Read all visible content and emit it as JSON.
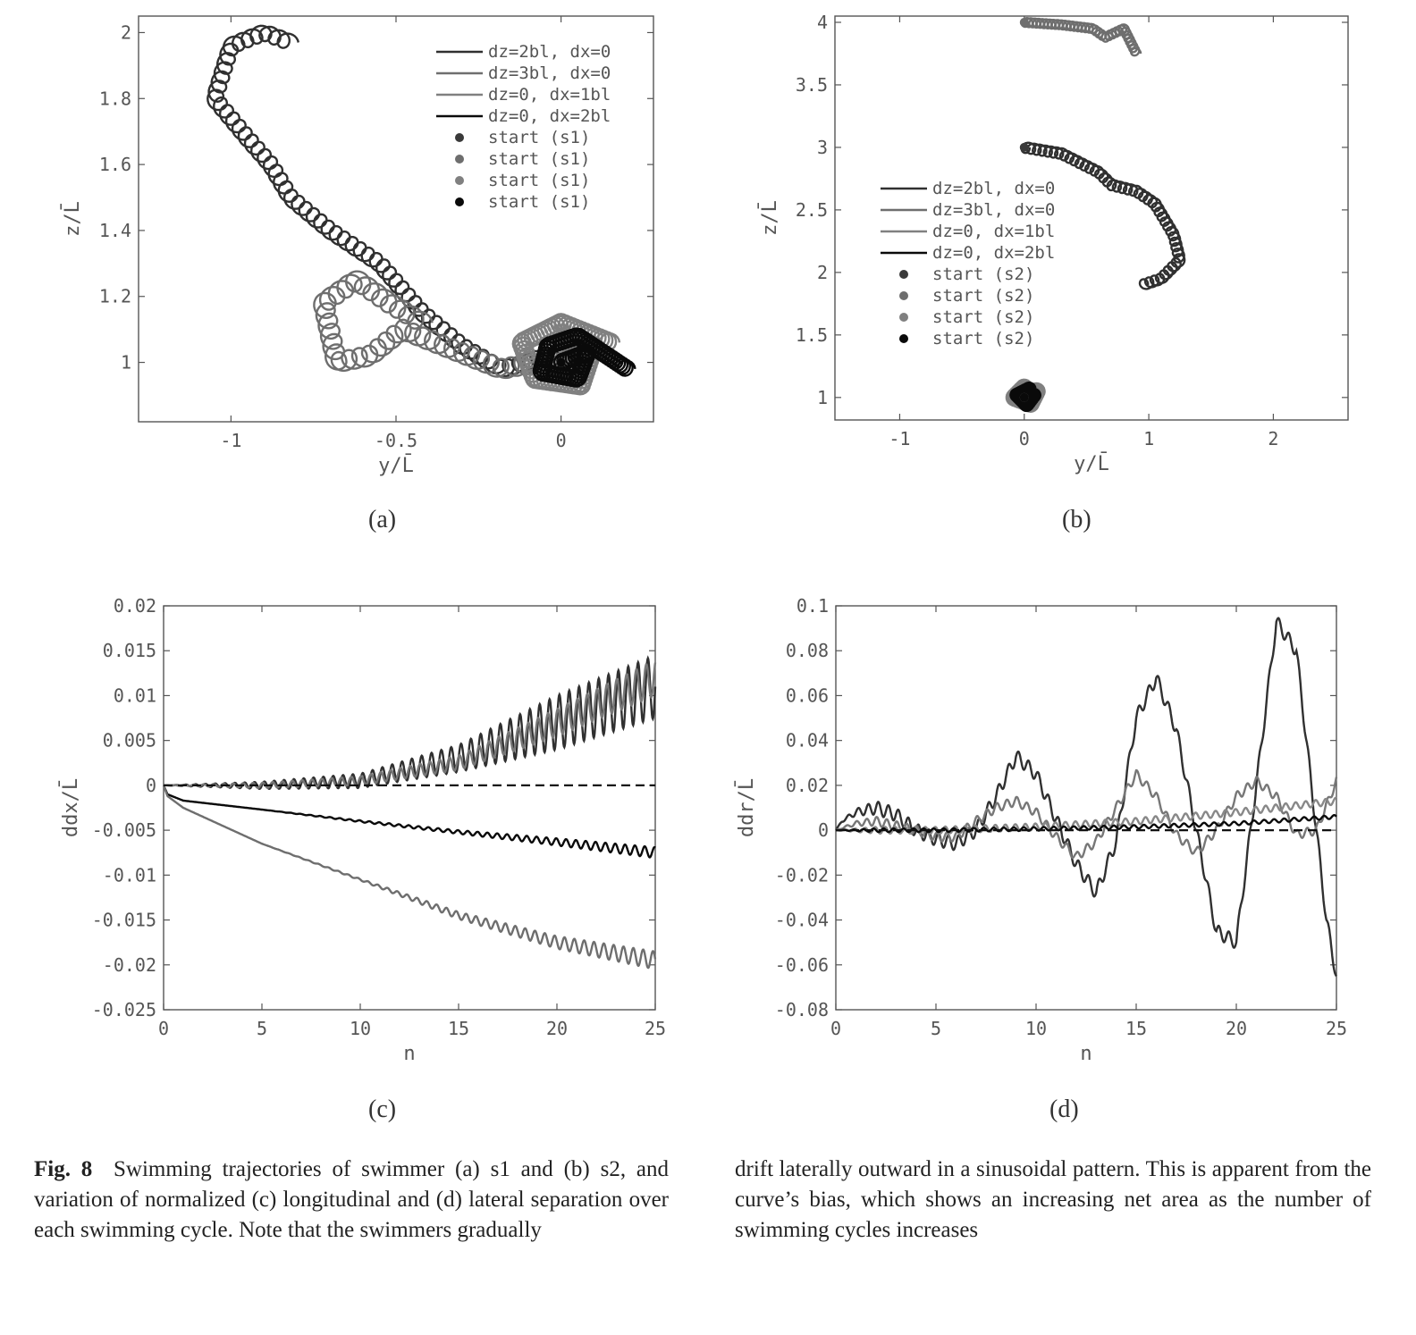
{
  "chart_data": [
    {
      "id": "a",
      "type": "line",
      "xlabel": "y/L̄",
      "ylabel": "z/L̄",
      "xlim": [
        -1.28,
        0.28
      ],
      "ylim": [
        0.82,
        2.05
      ],
      "xticks": [
        "-1",
        "-0.5",
        "0"
      ],
      "xtick_values": [
        -1,
        -0.5,
        0
      ],
      "yticks": [
        "1",
        "1.2",
        "1.4",
        "1.6",
        "1.8",
        "2"
      ],
      "ytick_values": [
        1,
        1.2,
        1.4,
        1.6,
        1.8,
        2
      ],
      "legend_position": "top-right",
      "series": [
        {
          "name": "dz=2bl, dx=0",
          "color": "#303030",
          "path": [
            [
              0,
              1
            ],
            [
              -0.05,
              1.02
            ],
            [
              -0.1,
              1.0
            ],
            [
              -0.18,
              0.98
            ],
            [
              -0.3,
              1.05
            ],
            [
              -0.42,
              1.15
            ],
            [
              -0.55,
              1.3
            ],
            [
              -0.7,
              1.4
            ],
            [
              -0.82,
              1.5
            ],
            [
              -0.88,
              1.6
            ],
            [
              -0.95,
              1.68
            ],
            [
              -1.05,
              1.8
            ],
            [
              -1.0,
              1.96
            ],
            [
              -0.9,
              2.0
            ],
            [
              -0.82,
              1.97
            ]
          ]
        },
        {
          "name": "dz=3bl, dx=0",
          "color": "#6e6e6e",
          "path": [
            [
              0,
              1
            ],
            [
              -0.08,
              1.0
            ],
            [
              -0.18,
              0.98
            ],
            [
              -0.28,
              1.02
            ],
            [
              -0.38,
              1.06
            ],
            [
              -0.48,
              1.1
            ],
            [
              -0.58,
              1.02
            ],
            [
              -0.68,
              1.0
            ],
            [
              -0.72,
              1.18
            ],
            [
              -0.62,
              1.25
            ],
            [
              -0.52,
              1.18
            ],
            [
              -0.42,
              1.12
            ]
          ]
        },
        {
          "name": "dz=0, dx=1bl",
          "color": "#808080",
          "path": [
            [
              0,
              1
            ],
            [
              0.1,
              1.05
            ],
            [
              0.06,
              0.93
            ],
            [
              -0.08,
              0.95
            ],
            [
              -0.12,
              1.06
            ],
            [
              0.0,
              1.12
            ],
            [
              0.15,
              1.06
            ]
          ]
        },
        {
          "name": "dz=0, dx=2bl",
          "color": "#0a0a0a",
          "path": [
            [
              0,
              1
            ],
            [
              0.08,
              1.03
            ],
            [
              0.05,
              0.95
            ],
            [
              -0.06,
              0.97
            ],
            [
              -0.04,
              1.05
            ],
            [
              0.05,
              1.08
            ],
            [
              0.2,
              0.98
            ]
          ]
        }
      ],
      "start_points": [
        {
          "name": "start (s1)",
          "x": 0,
          "y": 1,
          "color": "#3a3a3a"
        },
        {
          "name": "start (s1)",
          "x": 0,
          "y": 1,
          "color": "#6e6e6e"
        },
        {
          "name": "start (s1)",
          "x": 0,
          "y": 1,
          "color": "#808080"
        },
        {
          "name": "start (s1)",
          "x": 0,
          "y": 1,
          "color": "#0a0a0a"
        }
      ],
      "sublabel": "(a)"
    },
    {
      "id": "b",
      "type": "line",
      "xlabel": "y/L̄",
      "ylabel": "z/L̄",
      "xlim": [
        -1.52,
        2.6
      ],
      "ylim": [
        0.82,
        4.05
      ],
      "xticks": [
        "-1",
        "0",
        "1",
        "2"
      ],
      "xtick_values": [
        -1,
        0,
        1,
        2
      ],
      "yticks": [
        "1",
        "1.5",
        "2",
        "2.5",
        "3",
        "3.5",
        "4"
      ],
      "ytick_values": [
        1,
        1.5,
        2,
        2.5,
        3,
        3.5,
        4
      ],
      "legend_position": "middle-left",
      "series": [
        {
          "name": "dz=2bl, dx=0",
          "color": "#303030",
          "path": [
            [
              0,
              3
            ],
            [
              0.3,
              2.95
            ],
            [
              0.6,
              2.8
            ],
            [
              0.7,
              2.7
            ],
            [
              0.9,
              2.65
            ],
            [
              1.05,
              2.55
            ],
            [
              1.2,
              2.3
            ],
            [
              1.25,
              2.1
            ],
            [
              1.1,
              1.95
            ],
            [
              0.95,
              1.9
            ]
          ]
        },
        {
          "name": "dz=3bl, dx=0",
          "color": "#6e6e6e",
          "path": [
            [
              0,
              4
            ],
            [
              0.3,
              3.98
            ],
            [
              0.55,
              3.95
            ],
            [
              0.65,
              3.88
            ],
            [
              0.8,
              3.95
            ],
            [
              0.9,
              3.75
            ]
          ]
        },
        {
          "name": "dz=0, dx=1bl",
          "color": "#808080",
          "path": [
            [
              0,
              1
            ],
            [
              0.1,
              1.05
            ],
            [
              0.05,
              0.95
            ],
            [
              -0.08,
              1.0
            ],
            [
              0.0,
              1.08
            ]
          ]
        },
        {
          "name": "dz=0, dx=2bl",
          "color": "#0a0a0a",
          "path": [
            [
              0,
              1
            ],
            [
              0.08,
              1.02
            ],
            [
              0.02,
              0.94
            ],
            [
              -0.06,
              1.02
            ],
            [
              0.04,
              1.07
            ]
          ]
        }
      ],
      "start_points": [
        {
          "name": "start (s2)",
          "x": 0,
          "y": 3,
          "color": "#3a3a3a"
        },
        {
          "name": "start (s2)",
          "x": 0,
          "y": 4,
          "color": "#6e6e6e"
        },
        {
          "name": "start (s2)",
          "x": 0,
          "y": 1,
          "color": "#808080"
        },
        {
          "name": "start (s2)",
          "x": 0,
          "y": 1,
          "color": "#0a0a0a"
        }
      ],
      "sublabel": "(b)"
    },
    {
      "id": "c",
      "type": "line",
      "xlabel": "n",
      "ylabel": "ddx/L̄",
      "xlim": [
        0,
        25
      ],
      "ylim": [
        -0.025,
        0.02
      ],
      "xticks": [
        "0",
        "5",
        "10",
        "15",
        "20",
        "25"
      ],
      "xtick_values": [
        0,
        5,
        10,
        15,
        20,
        25
      ],
      "yticks": [
        "-0.025",
        "-0.02",
        "-0.015",
        "-0.01",
        "-0.005",
        "0",
        "0.005",
        "0.01",
        "0.015",
        "0.02"
      ],
      "ytick_values": [
        -0.025,
        -0.02,
        -0.015,
        -0.01,
        -0.005,
        0,
        0.005,
        0.01,
        0.015,
        0.02
      ],
      "reference_line": 0,
      "series": [
        {
          "color": "#303030",
          "x": [
            0,
            5,
            10,
            15,
            20,
            25
          ],
          "y": [
            0,
            0,
            0.0005,
            0.003,
            0.007,
            0.011
          ],
          "osc_amp": [
            0,
            0.0004,
            0.0008,
            0.0015,
            0.003,
            0.0035
          ]
        },
        {
          "color": "#777777",
          "x": [
            0,
            5,
            10,
            15,
            20,
            25
          ],
          "y": [
            0,
            0,
            0.0005,
            0.0025,
            0.007,
            0.012
          ],
          "osc_amp": [
            0,
            0.0003,
            0.0005,
            0.0008,
            0.0015,
            0.002
          ]
        },
        {
          "color": "#0a0a0a",
          "x": [
            0,
            0.2,
            1,
            5,
            10,
            15,
            20,
            25
          ],
          "y": [
            0,
            -0.001,
            -0.0017,
            -0.0027,
            -0.004,
            -0.0052,
            -0.0063,
            -0.0075
          ],
          "osc_amp": [
            0,
            0,
            0,
            0,
            0.0001,
            0.0002,
            0.0004,
            0.0006
          ]
        },
        {
          "color": "#6e6e6e",
          "x": [
            0,
            0.2,
            1,
            5,
            10,
            15,
            20,
            25
          ],
          "y": [
            0,
            -0.0012,
            -0.0025,
            -0.0065,
            -0.0105,
            -0.0145,
            -0.0175,
            -0.0195
          ],
          "osc_amp": [
            0,
            0,
            0,
            0,
            0.0001,
            0.0004,
            0.0007,
            0.001
          ]
        }
      ],
      "sublabel": "(c)"
    },
    {
      "id": "d",
      "type": "line",
      "xlabel": "n",
      "ylabel": "ddr/L̄",
      "xlim": [
        0,
        25
      ],
      "ylim": [
        -0.08,
        0.1
      ],
      "xticks": [
        "0",
        "5",
        "10",
        "15",
        "20",
        "25"
      ],
      "xtick_values": [
        0,
        5,
        10,
        15,
        20,
        25
      ],
      "yticks": [
        "-0.08",
        "-0.06",
        "-0.04",
        "-0.02",
        "0",
        "0.02",
        "0.04",
        "0.06",
        "0.08",
        "0.1"
      ],
      "ytick_values": [
        -0.08,
        -0.06,
        -0.04,
        -0.02,
        0,
        0.02,
        0.04,
        0.06,
        0.08,
        0.1
      ],
      "reference_line": 0,
      "series": [
        {
          "color": "#303030",
          "x": [
            0,
            0.3,
            1,
            2,
            3,
            4,
            5,
            6,
            7,
            8,
            9,
            10,
            11,
            12,
            13,
            14,
            15,
            16,
            17,
            18,
            19,
            20,
            21,
            22,
            23,
            24,
            24.5,
            25
          ],
          "y": [
            0,
            0.004,
            0.008,
            0.01,
            0.007,
            0.0,
            -0.004,
            -0.006,
            0.0,
            0.015,
            0.033,
            0.025,
            0.005,
            -0.015,
            -0.028,
            -0.005,
            0.05,
            0.068,
            0.045,
            0.0,
            -0.045,
            -0.05,
            0.02,
            0.093,
            0.08,
            0.0,
            -0.04,
            -0.065
          ],
          "osc_amp": 0.003
        },
        {
          "color": "#777777",
          "x": [
            0,
            1,
            2,
            3,
            4,
            5,
            6,
            7,
            8,
            9,
            10,
            11,
            12,
            13,
            14,
            15,
            16,
            17,
            18,
            19,
            20,
            21,
            22,
            23,
            24,
            25
          ],
          "y": [
            0,
            0.003,
            0.004,
            0.002,
            0.0,
            -0.003,
            -0.003,
            0.004,
            0.01,
            0.013,
            0.008,
            -0.003,
            -0.012,
            -0.005,
            0.01,
            0.025,
            0.015,
            -0.002,
            -0.01,
            0.0,
            0.015,
            0.022,
            0.015,
            -0.002,
            0.0,
            0.022
          ],
          "osc_amp": 0.002
        },
        {
          "color": "#888888",
          "x": [
            0,
            5,
            10,
            15,
            20,
            25
          ],
          "y": [
            0,
            0,
            0.0015,
            0.004,
            0.008,
            0.013
          ],
          "osc_amp": 0.0015
        },
        {
          "color": "#0a0a0a",
          "x": [
            0,
            5,
            10,
            15,
            20,
            25
          ],
          "y": [
            0,
            0,
            0.0006,
            0.0015,
            0.003,
            0.006
          ],
          "osc_amp": 0.0008
        }
      ],
      "sublabel": "(d)"
    }
  ],
  "caption": {
    "label": "Fig. 8",
    "left_text": "Swimming trajectories of swimmer (a) s1 and (b) s2, and variation of normalized (c) longitudinal and (d) lateral separation over each swimming cycle. Note that the swimmers gradually",
    "right_text": "drift laterally outward in a sinusoidal pattern. This is apparent from the curve’s bias, which shows an increasing net area as the number of swimming cycles increases"
  }
}
